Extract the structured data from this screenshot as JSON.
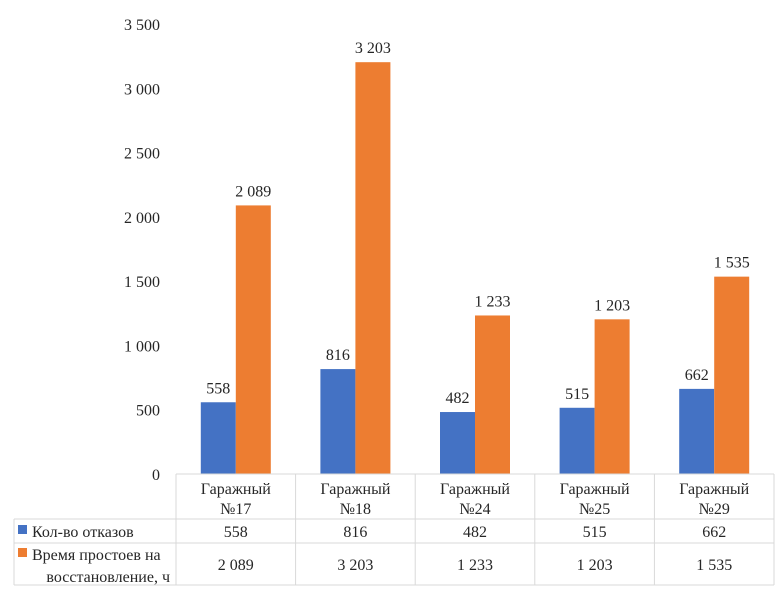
{
  "colors": {
    "series1": "#4472C4",
    "series2": "#ED7D31",
    "grid": "#D9D9D9",
    "text": "#262626"
  },
  "chart_data": {
    "type": "bar",
    "title": "",
    "xlabel": "",
    "ylabel": "",
    "ylim": [
      0,
      3500
    ],
    "yticks": [
      0,
      500,
      1000,
      1500,
      2000,
      2500,
      3000,
      3500
    ],
    "ytick_labels": [
      "0",
      "500",
      "1 000",
      "1 500",
      "2 000",
      "2 500",
      "3 000",
      "3 500"
    ],
    "categories": [
      [
        "Гаражный",
        "№17"
      ],
      [
        "Гаражный",
        "№18"
      ],
      [
        "Гаражный",
        "№24"
      ],
      [
        "Гаражный",
        "№25"
      ],
      [
        "Гаражный",
        "№29"
      ]
    ],
    "series": [
      {
        "name": "Кол-во отказов",
        "name_lines": [
          "Кол-во отказов"
        ],
        "values": [
          558,
          816,
          482,
          515,
          662
        ],
        "labels": [
          "558",
          "816",
          "482",
          "515",
          "662"
        ]
      },
      {
        "name": "Время простоев на восстановление, ч",
        "name_lines": [
          "Время простоев на",
          "восстановление, ч"
        ],
        "values": [
          2089,
          3203,
          1233,
          1203,
          1535
        ],
        "labels": [
          "2 089",
          "3 203",
          "1 233",
          "1 203",
          "1 535"
        ]
      }
    ],
    "grid": false,
    "legend": "data-table"
  }
}
